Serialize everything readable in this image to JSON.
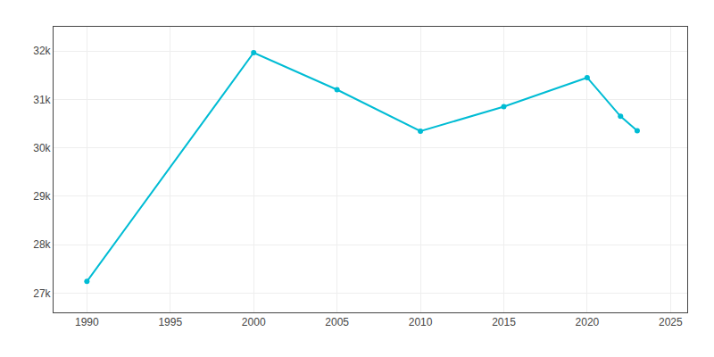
{
  "chart_data": {
    "type": "line",
    "x": [
      1990,
      2000,
      2005,
      2010,
      2015,
      2020,
      2022,
      2023
    ],
    "values": [
      27239,
      31965,
      31200,
      30344,
      30850,
      31450,
      30650,
      30350
    ],
    "color": "#00bcd4",
    "marker": "circle",
    "xlim": [
      1988,
      2026
    ],
    "xticks": [
      1990,
      1995,
      2000,
      2005,
      2010,
      2015,
      2020,
      2025
    ],
    "ylim": [
      26600,
      32500
    ],
    "yticks": [
      {
        "value": 27000,
        "label": "27k"
      },
      {
        "value": 28000,
        "label": "28k"
      },
      {
        "value": 29000,
        "label": "29k"
      },
      {
        "value": 30000,
        "label": "30k"
      },
      {
        "value": 31000,
        "label": "31k"
      },
      {
        "value": 32000,
        "label": "32k"
      }
    ],
    "grid": true
  }
}
